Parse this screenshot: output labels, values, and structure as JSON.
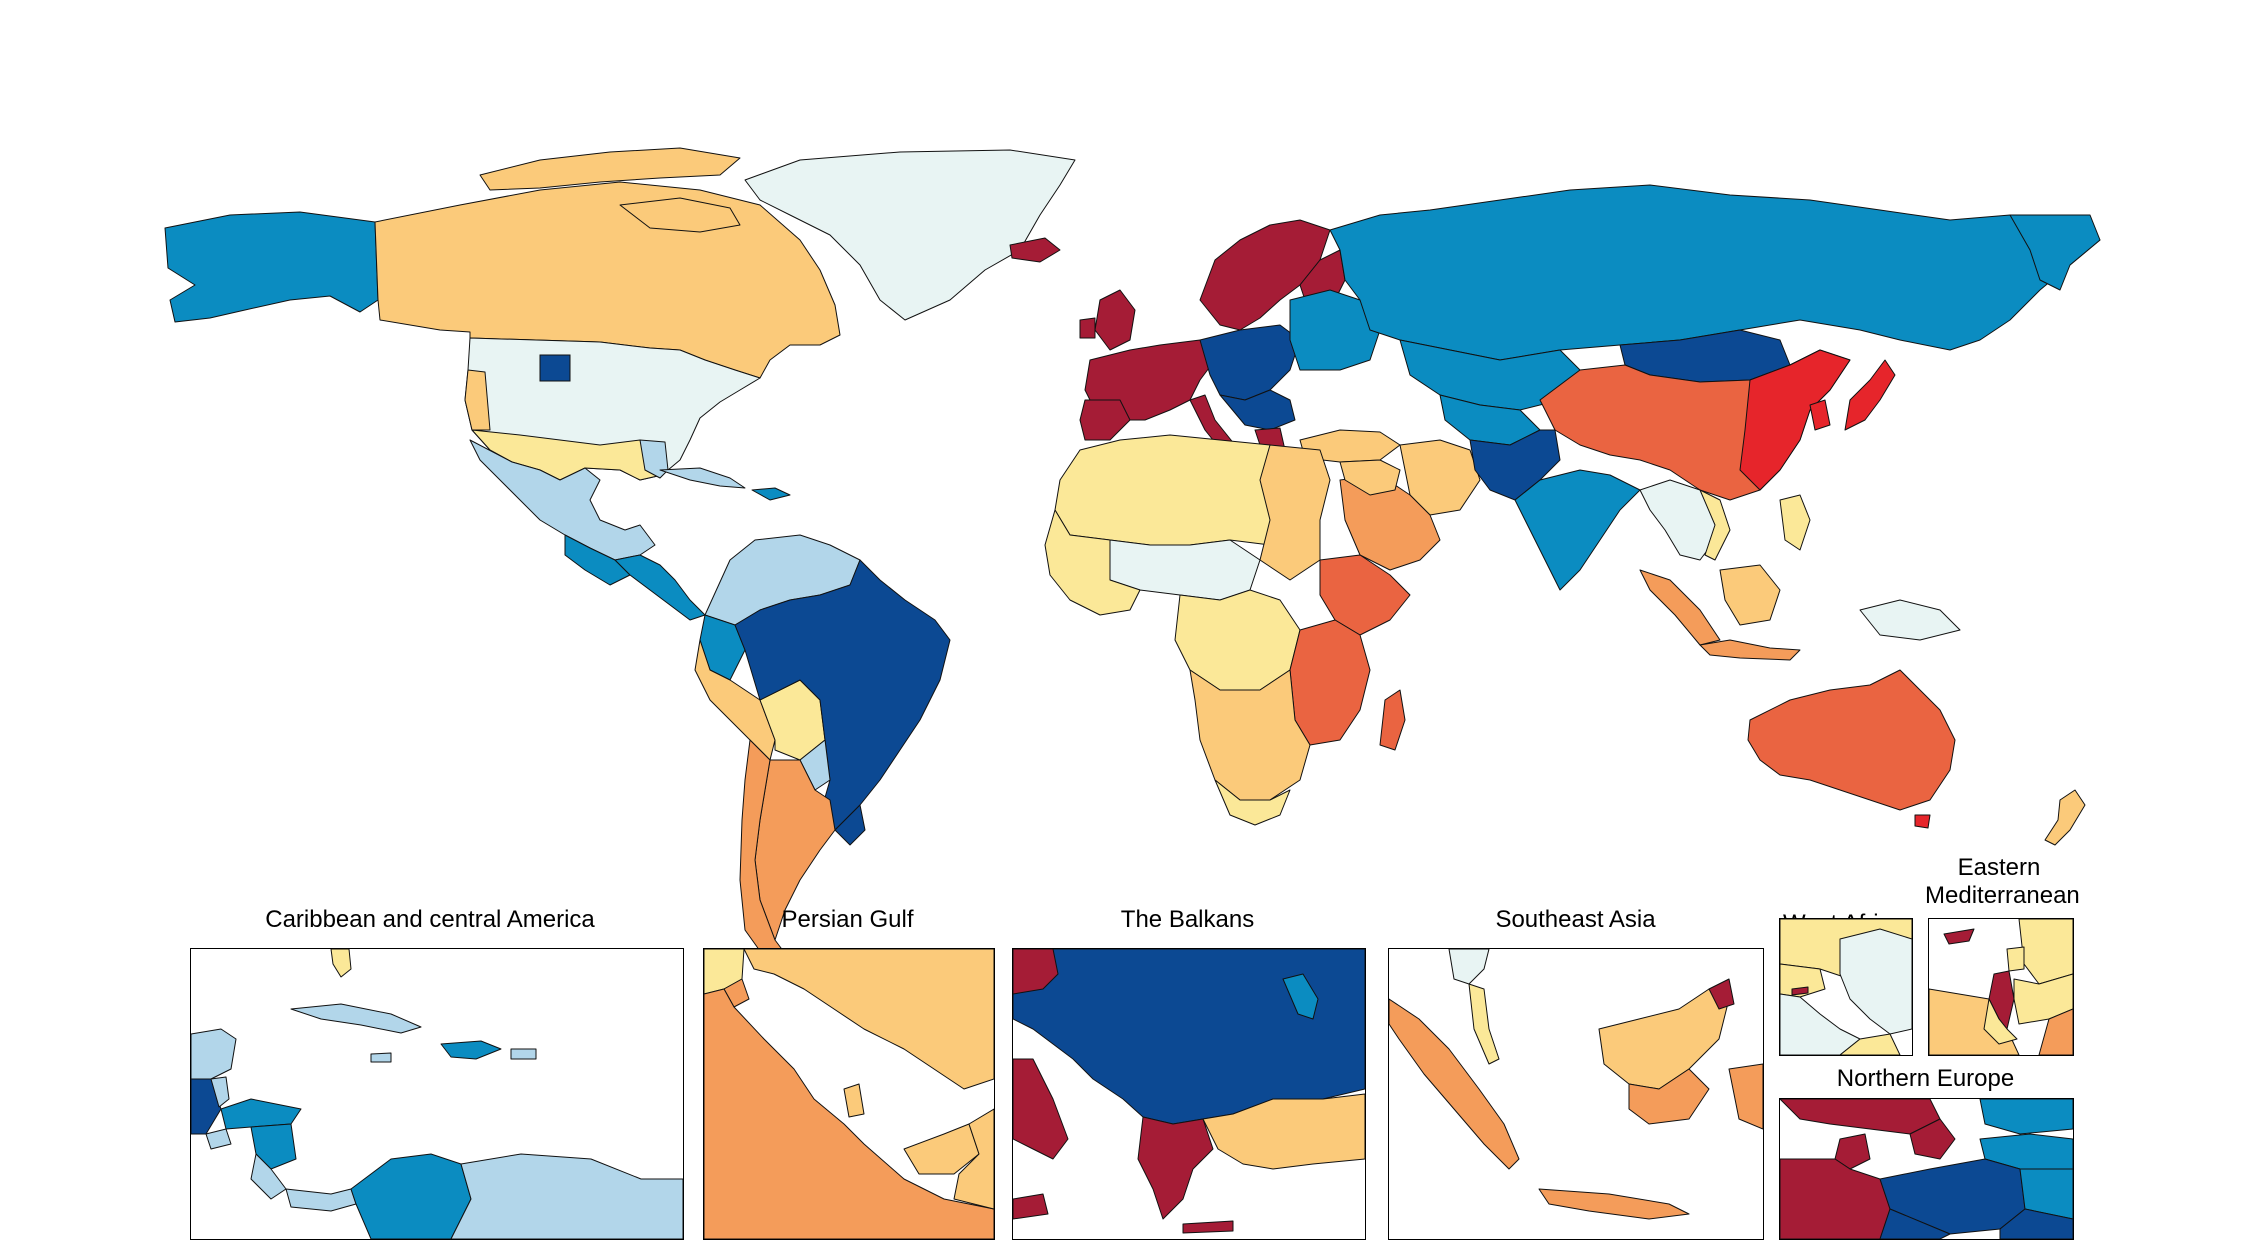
{
  "map": {
    "palette": {
      "c1": "#a51c36",
      "c2": "#e6252b",
      "c3": "#ea6441",
      "c4": "#f49c5a",
      "c5": "#fbca7a",
      "c6": "#fbe898",
      "c7": "#e8f4f3",
      "c8": "#b2d6ea",
      "c9": "#0b8cc1",
      "c10": "#0c4993"
    },
    "insets": [
      {
        "id": "caribbean",
        "title": "Caribbean and central America"
      },
      {
        "id": "persian-gulf",
        "title": "Persian Gulf"
      },
      {
        "id": "balkans",
        "title": "The Balkans"
      },
      {
        "id": "southeast-asia",
        "title": "Southeast Asia"
      },
      {
        "id": "west-africa",
        "title": "West Africa"
      },
      {
        "id": "eastern-mediterranean",
        "title": "Eastern Mediterranean"
      },
      {
        "id": "northern-europe",
        "title": "Northern Europe"
      }
    ]
  }
}
